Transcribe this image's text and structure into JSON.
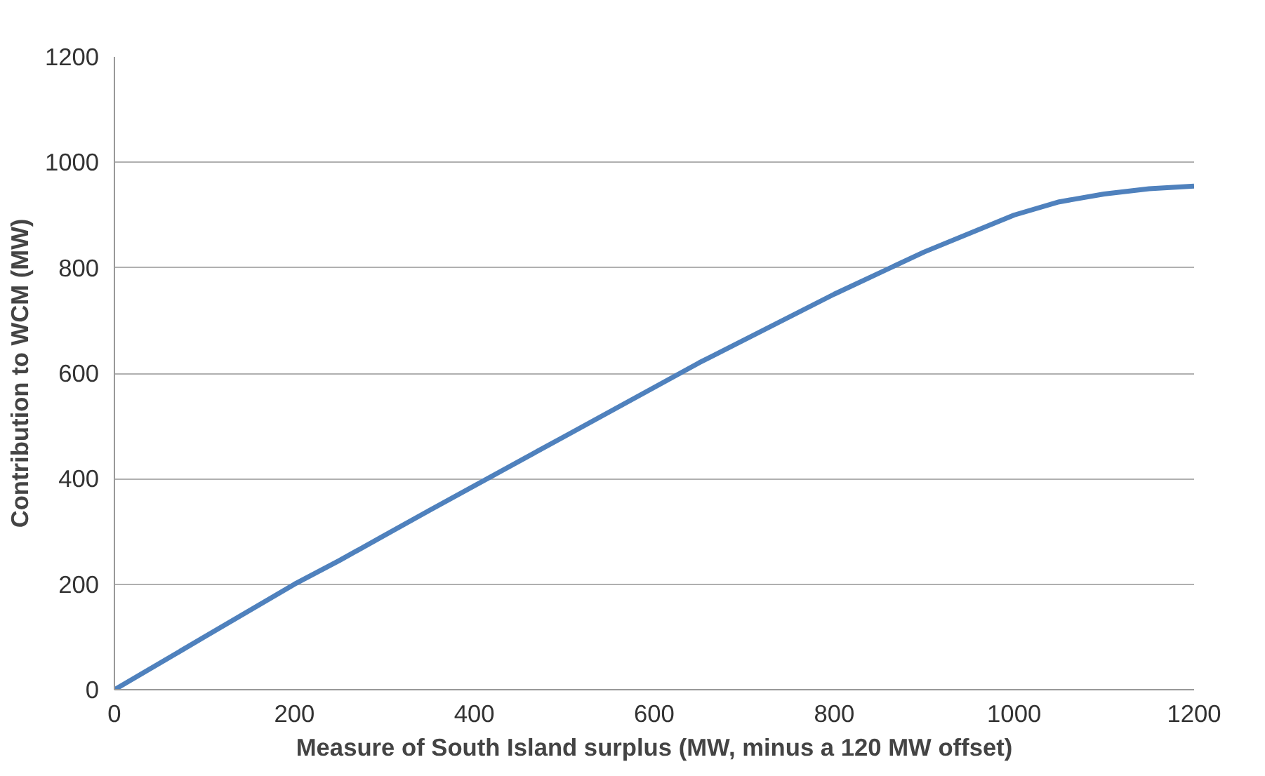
{
  "chart_data": {
    "type": "line",
    "xlabel": "Measure of South Island surplus (MW, minus a 120 MW offset)",
    "ylabel": "Contribution to WCM (MW)",
    "x": [
      0,
      100,
      200,
      250,
      350,
      500,
      650,
      800,
      900,
      1000,
      1050,
      1100,
      1150,
      1200
    ],
    "series": [
      {
        "color": "#4f81bd",
        "values": [
          0,
          100,
          200,
          245,
          340,
          480,
          620,
          750,
          830,
          900,
          925,
          940,
          950,
          955
        ]
      }
    ],
    "xlim": [
      0,
      1200
    ],
    "xticks": [
      0,
      200,
      400,
      600,
      800,
      1000,
      1200
    ],
    "ylim": [
      0,
      1200
    ],
    "yticks": [
      0,
      200,
      400,
      600,
      800,
      1000,
      1200
    ],
    "grid": "y",
    "marker": "none",
    "line_style": "solid"
  }
}
